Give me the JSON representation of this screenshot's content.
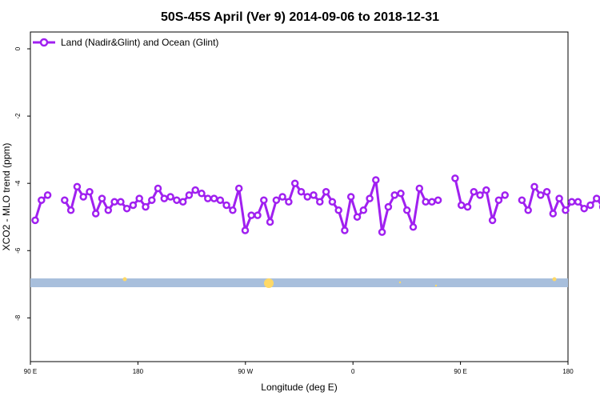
{
  "chart_data": {
    "type": "line",
    "title": "50S-45S April (Ver 9)   2014-09-06 to 2018-12-31",
    "xlabel": "Longitude (deg E)",
    "ylabel": "XCO2 - MLO trend (ppm)",
    "x_tick_labels": [
      "90 E",
      "180",
      "90 W",
      "0",
      "90 E",
      "180"
    ],
    "y_tick_labels": [
      "0",
      "-2",
      "-4",
      "-6",
      "-8"
    ],
    "y_ticks": [
      0,
      -2,
      -4,
      -6,
      -8
    ],
    "ylim": [
      -9.3,
      0.5
    ],
    "grid": false,
    "legend_position": "top-left",
    "colors": {
      "series": "#a020f0",
      "band": "#a8bfdc",
      "markers": "#ffd966"
    },
    "series": [
      {
        "name": "Land (Nadir&Glint) and Ocean (Glint)",
        "segments": [
          [
            -5.1,
            -4.5,
            -4.35
          ],
          [
            -4.5,
            -4.8,
            -4.1,
            -4.4,
            -4.25,
            -4.9,
            -4.45,
            -4.8,
            -4.55,
            -4.55,
            -4.75,
            -4.65,
            -4.45,
            -4.7,
            -4.5,
            -4.15,
            -4.45,
            -4.4,
            -4.5,
            -4.55,
            -4.35,
            -4.2,
            -4.3,
            -4.45,
            -4.45,
            -4.5,
            -4.65,
            -4.8,
            -4.15,
            -5.4,
            -4.95,
            -4.95,
            -4.5,
            -5.15,
            -4.5,
            -4.4,
            -4.55,
            -4.0,
            -4.25,
            -4.4,
            -4.35,
            -4.55,
            -4.25,
            -4.55,
            -4.8,
            -5.4,
            -4.4,
            -5.0,
            -4.8,
            -4.45,
            -3.9,
            -5.45,
            -4.7,
            -4.35,
            -4.3,
            -4.8,
            -5.3,
            -4.15,
            -4.55,
            -4.55,
            -4.5
          ],
          [
            -3.85,
            -4.65,
            -4.7,
            -4.25,
            -4.35,
            -4.2,
            -5.1,
            -4.5,
            -4.35
          ],
          [
            -4.5,
            -4.8,
            -4.1,
            -4.35,
            -4.25,
            -4.9,
            -4.45,
            -4.8,
            -4.55,
            -4.55,
            -4.75,
            -4.65,
            -4.45,
            -4.7
          ]
        ]
      }
    ]
  }
}
